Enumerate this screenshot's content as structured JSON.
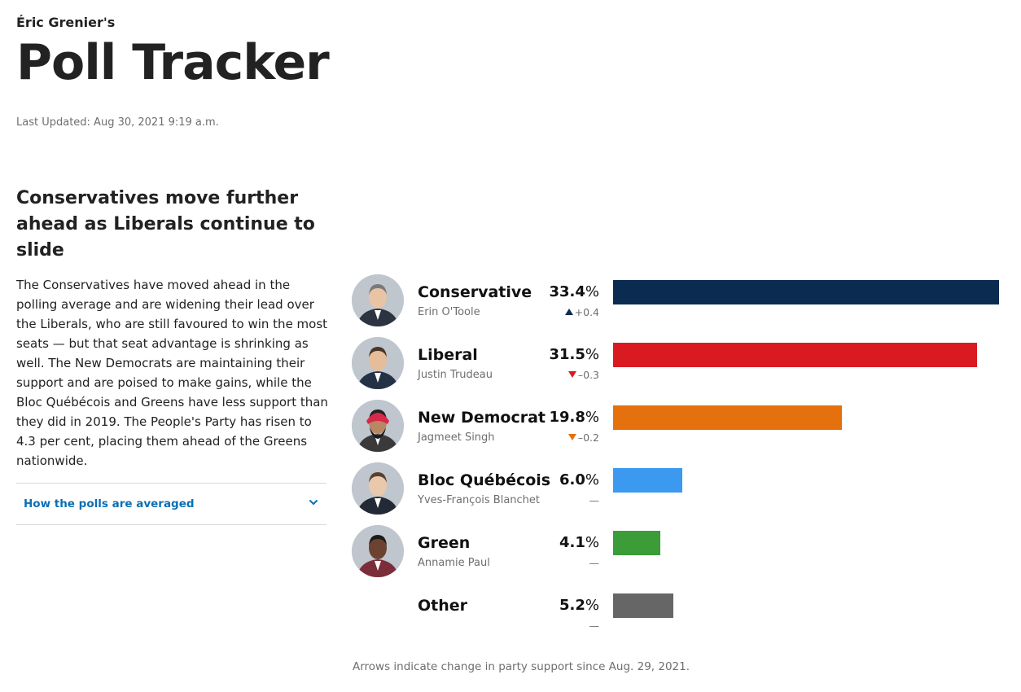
{
  "header": {
    "kicker": "Éric Grenier's",
    "title": "Poll Tracker",
    "updated": "Last Updated: Aug 30, 2021 9:19 a.m."
  },
  "article": {
    "headline": "Conservatives move further ahead as Liberals continue to slide",
    "body": "The Conservatives have moved ahead in the polling average and are widening their lead over the Liberals, who are still favoured to win the most seats — but that seat advantage is shrinking as well. The New Democrats are maintaining their support and are poised to make gains, while the Bloc Québécois and Greens have less support than they did in 2019. The People's Party has risen to 4.3 per cent, placing them ahead of the Greens nationwide."
  },
  "accordion": {
    "label": "How the polls are averaged",
    "icon": "chevron-down-icon",
    "color": "#0a6fb5"
  },
  "chart_data": {
    "type": "bar",
    "orientation": "horizontal",
    "unit": "%",
    "xlim": [
      0,
      33.4
    ],
    "grid": false,
    "legend": "none",
    "categories": [
      "Conservative",
      "Liberal",
      "New Democrat",
      "Bloc Québécois",
      "Green",
      "Other"
    ],
    "values": [
      33.4,
      31.5,
      19.8,
      6.0,
      4.1,
      5.2
    ],
    "value_labels": [
      "33.4",
      "31.5",
      "19.8",
      "6.0",
      "4.1",
      "5.2"
    ],
    "leaders": [
      "Erin O'Toole",
      "Justin Trudeau",
      "Jagmeet Singh",
      "Yves-François Blanchet",
      "Annamie Paul",
      ""
    ],
    "changes": [
      "+0.4",
      "–0.3",
      "–0.2",
      "—",
      "—",
      "—"
    ],
    "change_direction": [
      "up",
      "down",
      "down",
      "none",
      "none",
      "none"
    ],
    "colors": [
      "#0c2b50",
      "#d91a21",
      "#e4700e",
      "#3b9af0",
      "#3c9c37",
      "#666666"
    ],
    "arrow_colors": [
      "#0c2b50",
      "#d91a21",
      "#e4700e",
      "",
      "",
      ""
    ],
    "footnote": "Arrows indicate change in party support since Aug. 29, 2021."
  }
}
